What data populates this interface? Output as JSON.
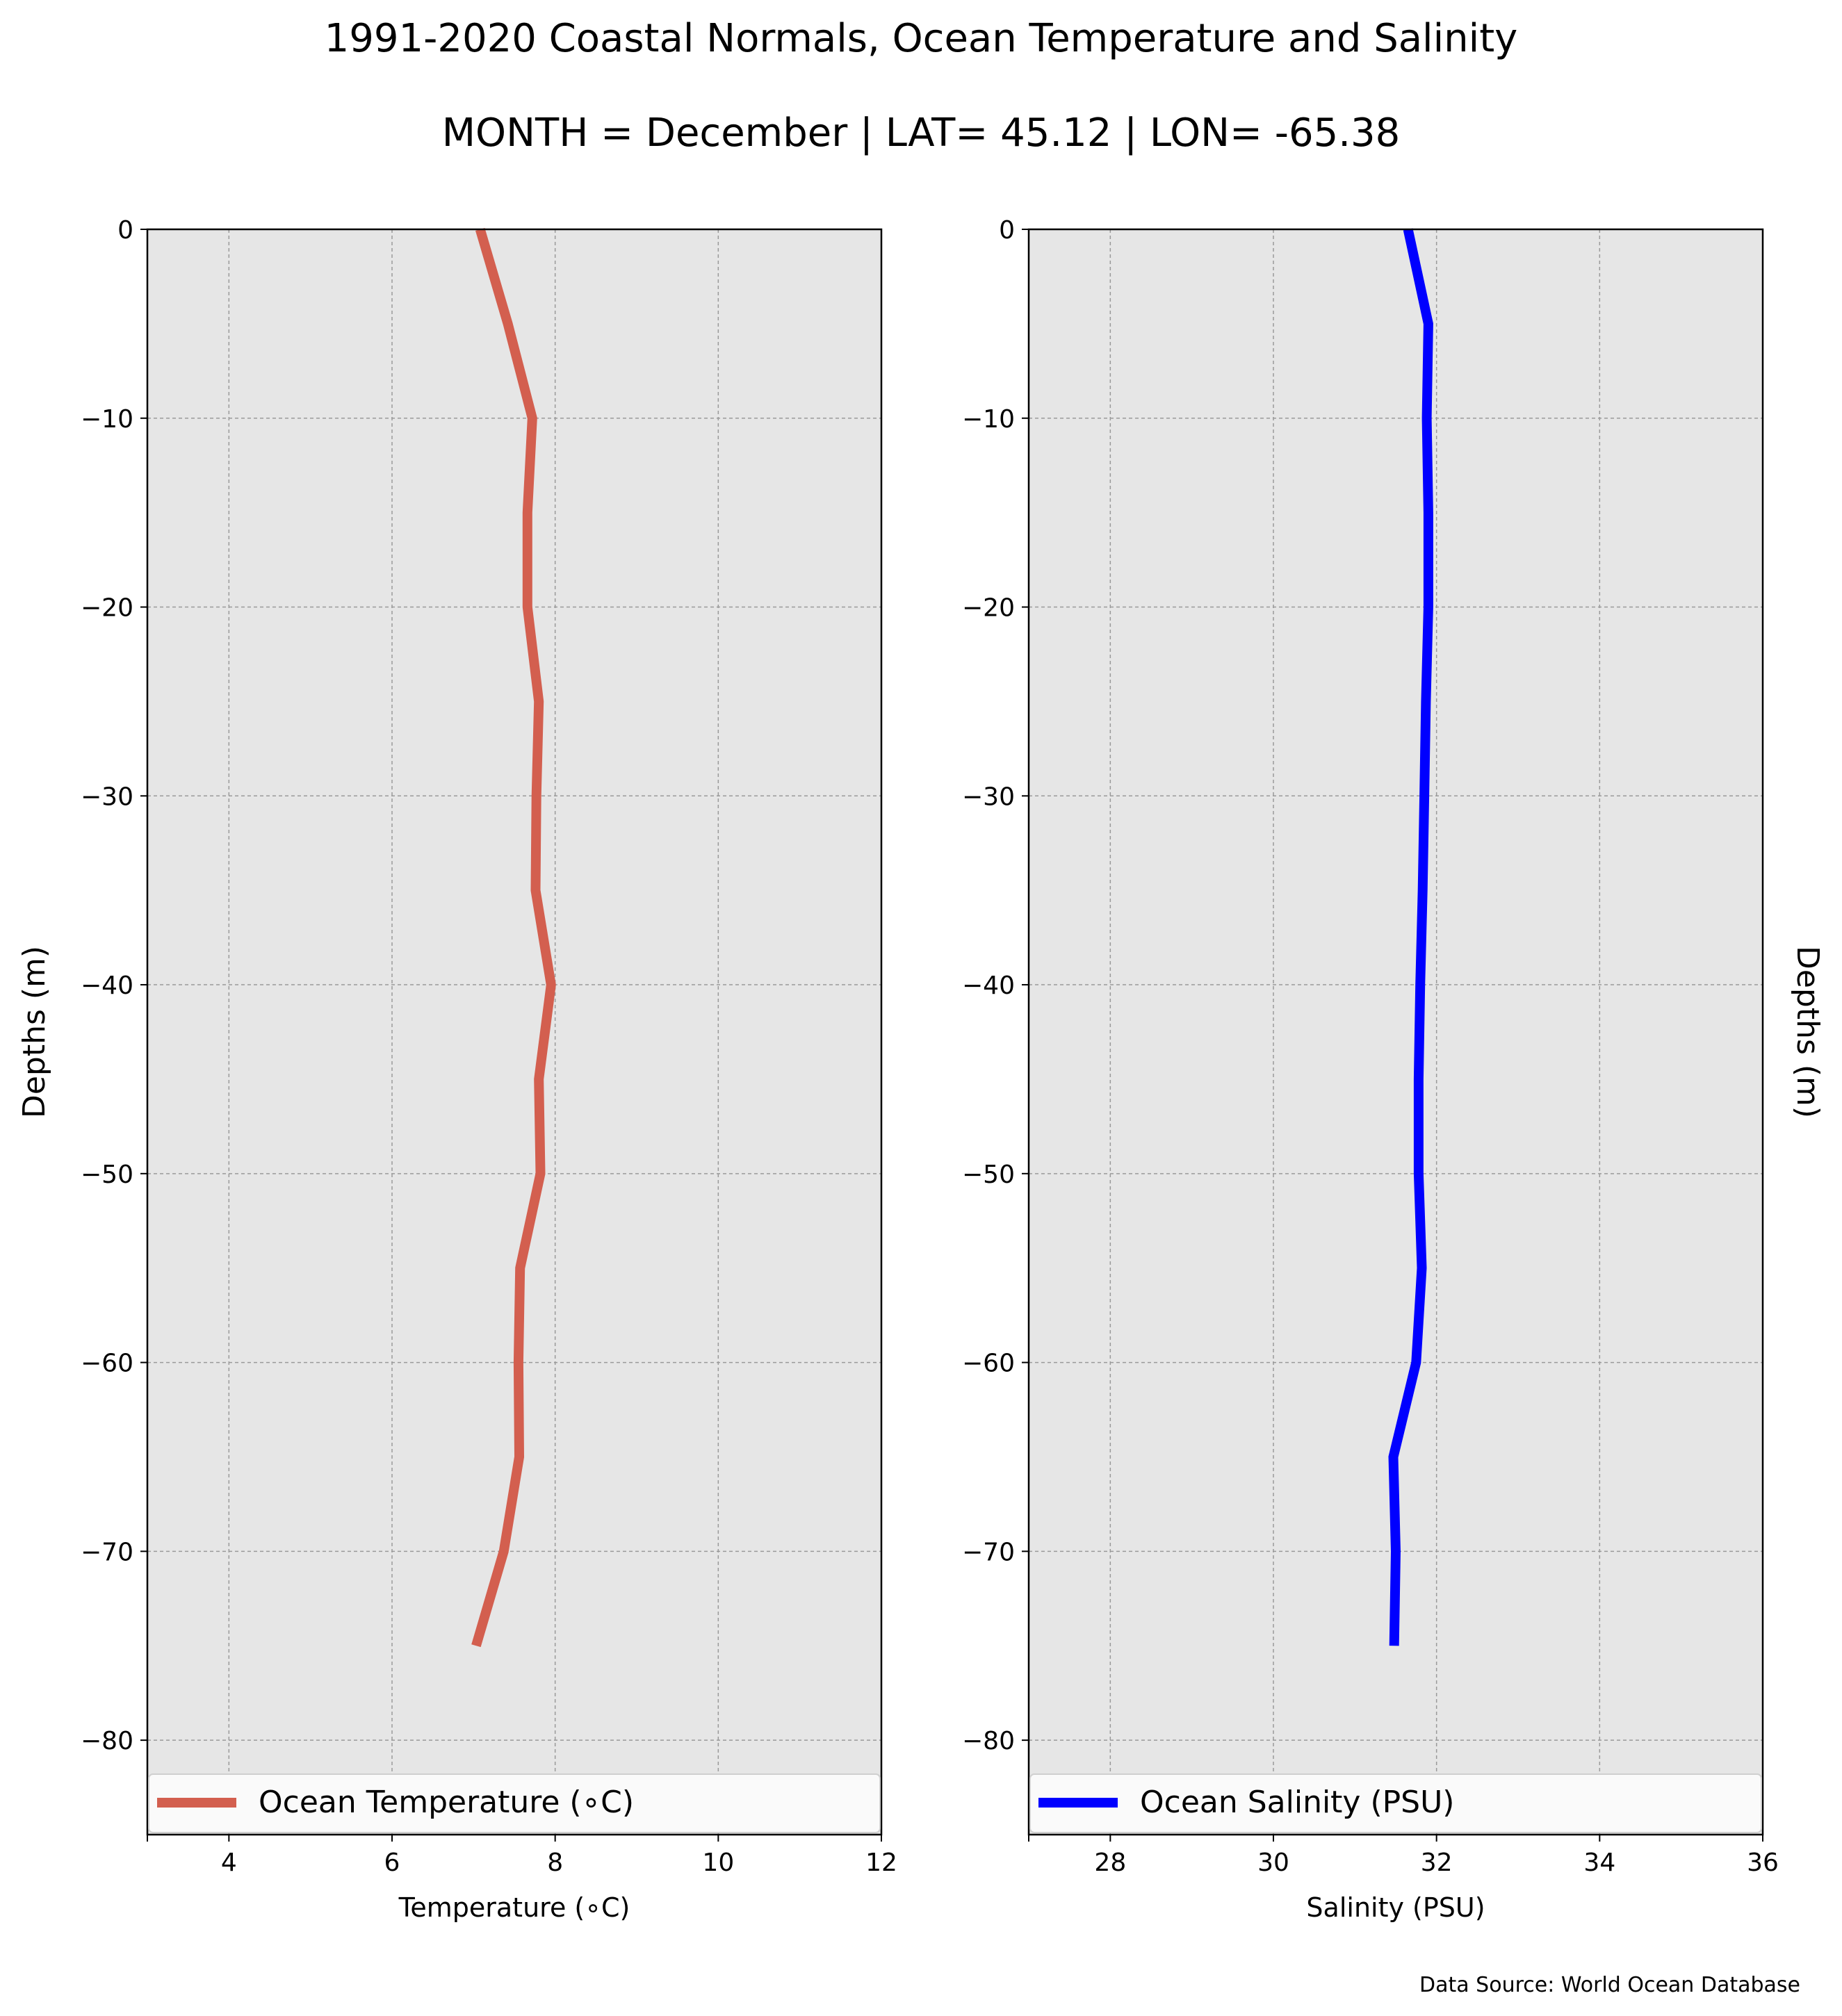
{
  "figure": {
    "title": "1991-2020 Coastal Normals, Ocean Temperature and Salinity",
    "subtitle": "MONTH = December | LAT= 45.12 | LON= -65.38",
    "source": "Data Source: World Ocean Database"
  },
  "chart_data": [
    {
      "type": "line",
      "title": "",
      "xlabel": "Temperature ($^\\circ$C)",
      "xlabel_display": "Temperature (∘C)",
      "ylabel": "Depths (m)",
      "xlim": [
        3,
        12
      ],
      "ylim": [
        -85,
        0
      ],
      "xticks": [
        4,
        6,
        8,
        10,
        12
      ],
      "xtick_labels": [
        "4",
        "6",
        "8",
        "10",
        "12"
      ],
      "yticks": [
        0,
        -10,
        -20,
        -30,
        -40,
        -50,
        -60,
        -70,
        -80
      ],
      "ytick_labels": [
        "0",
        "−10",
        "−20",
        "−30",
        "−40",
        "−50",
        "−60",
        "−70",
        "−80"
      ],
      "grid": true,
      "legend_position": "bottom",
      "series": [
        {
          "name": "Ocean Temperature (∘C)",
          "color": "#d35f4f",
          "x": [
            7.08,
            7.42,
            7.72,
            7.66,
            7.66,
            7.8,
            7.77,
            7.76,
            7.95,
            7.8,
            7.82,
            7.57,
            7.55,
            7.56,
            7.37,
            7.03
          ],
          "y": [
            0,
            -5,
            -10,
            -15,
            -20,
            -25,
            -30,
            -35,
            -40,
            -45,
            -50,
            -55,
            -60,
            -65,
            -70,
            -75
          ]
        }
      ]
    },
    {
      "type": "line",
      "title": "",
      "xlabel": "Salinity (PSU)",
      "ylabel": "Depths (m)",
      "xlim": [
        27,
        36
      ],
      "ylim": [
        -85,
        0
      ],
      "xticks": [
        28,
        30,
        32,
        34,
        36
      ],
      "xtick_labels": [
        "28",
        "30",
        "32",
        "34",
        "36"
      ],
      "yticks": [
        0,
        -10,
        -20,
        -30,
        -40,
        -50,
        -60,
        -70,
        -80
      ],
      "ytick_labels": [
        "0",
        "−10",
        "−20",
        "−30",
        "−40",
        "−50",
        "−60",
        "−70",
        "−80"
      ],
      "grid": true,
      "legend_position": "bottom",
      "series": [
        {
          "name": "Ocean Salinity (PSU)",
          "color": "#0000ff",
          "x": [
            31.65,
            31.9,
            31.88,
            31.9,
            31.9,
            31.87,
            31.85,
            31.83,
            31.8,
            31.78,
            31.78,
            31.82,
            31.75,
            31.47,
            31.5,
            31.48
          ],
          "y": [
            0,
            -5,
            -10,
            -15,
            -20,
            -25,
            -30,
            -35,
            -40,
            -45,
            -50,
            -55,
            -60,
            -65,
            -70,
            -75
          ]
        }
      ]
    }
  ]
}
